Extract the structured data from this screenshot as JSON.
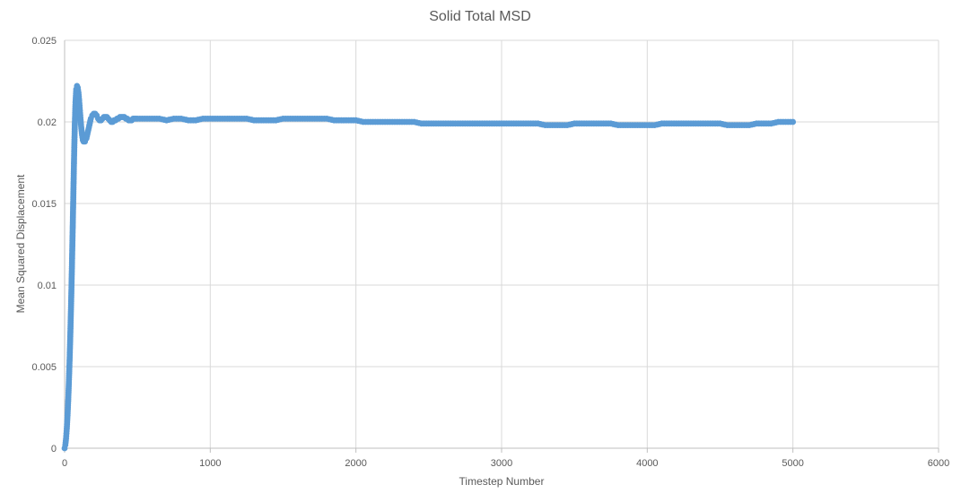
{
  "chart_data": {
    "type": "scatter",
    "title": "Solid Total MSD",
    "xlabel": "Timestep Number",
    "ylabel": "Mean Squared Displacement",
    "xlim": [
      0,
      6000
    ],
    "ylim": [
      0,
      0.025
    ],
    "xticks": [
      0,
      1000,
      2000,
      3000,
      4000,
      5000,
      6000
    ],
    "yticks": [
      0,
      0.005,
      0.01,
      0.015,
      0.02,
      0.025
    ],
    "xtick_labels": [
      "0",
      "1000",
      "2000",
      "3000",
      "4000",
      "5000",
      "6000"
    ],
    "ytick_labels": [
      "0",
      "0.005",
      "0.01",
      "0.015",
      "0.02",
      "0.025"
    ],
    "grid": true,
    "legend": "none",
    "marker_color": "#5b9bd5",
    "series": [
      {
        "name": "Solid Total MSD",
        "points": [
          [
            0,
            0
          ],
          [
            5,
            0.0002
          ],
          [
            10,
            0.0006
          ],
          [
            15,
            0.0012
          ],
          [
            20,
            0.002
          ],
          [
            25,
            0.003
          ],
          [
            30,
            0.0042
          ],
          [
            35,
            0.0056
          ],
          [
            40,
            0.0072
          ],
          [
            45,
            0.009
          ],
          [
            50,
            0.011
          ],
          [
            55,
            0.0132
          ],
          [
            60,
            0.0155
          ],
          [
            65,
            0.0178
          ],
          [
            70,
            0.0198
          ],
          [
            75,
            0.0212
          ],
          [
            80,
            0.022
          ],
          [
            85,
            0.0222
          ],
          [
            90,
            0.0221
          ],
          [
            95,
            0.0218
          ],
          [
            100,
            0.0213
          ],
          [
            105,
            0.0207
          ],
          [
            110,
            0.0201
          ],
          [
            115,
            0.0196
          ],
          [
            120,
            0.0192
          ],
          [
            125,
            0.0189
          ],
          [
            130,
            0.0188
          ],
          [
            140,
            0.0188
          ],
          [
            150,
            0.019
          ],
          [
            160,
            0.0194
          ],
          [
            170,
            0.0198
          ],
          [
            180,
            0.0202
          ],
          [
            190,
            0.0204
          ],
          [
            200,
            0.0205
          ],
          [
            210,
            0.0205
          ],
          [
            220,
            0.0204
          ],
          [
            230,
            0.0202
          ],
          [
            240,
            0.0201
          ],
          [
            250,
            0.0201
          ],
          [
            260,
            0.0202
          ],
          [
            270,
            0.0203
          ],
          [
            280,
            0.0203
          ],
          [
            290,
            0.0203
          ],
          [
            300,
            0.0202
          ],
          [
            310,
            0.0201
          ],
          [
            320,
            0.02
          ],
          [
            330,
            0.02
          ],
          [
            340,
            0.0201
          ],
          [
            350,
            0.0201
          ],
          [
            360,
            0.0202
          ],
          [
            370,
            0.0202
          ],
          [
            380,
            0.0203
          ],
          [
            390,
            0.0203
          ],
          [
            400,
            0.0203
          ],
          [
            410,
            0.0203
          ],
          [
            420,
            0.0202
          ],
          [
            430,
            0.0202
          ],
          [
            440,
            0.0201
          ],
          [
            450,
            0.0201
          ],
          [
            460,
            0.0201
          ],
          [
            470,
            0.0202
          ],
          [
            480,
            0.0202
          ],
          [
            490,
            0.0202
          ],
          [
            500,
            0.0202
          ],
          [
            550,
            0.0202
          ],
          [
            600,
            0.0202
          ],
          [
            650,
            0.0202
          ],
          [
            700,
            0.0201
          ],
          [
            750,
            0.0202
          ],
          [
            800,
            0.0202
          ],
          [
            850,
            0.0201
          ],
          [
            900,
            0.0201
          ],
          [
            950,
            0.0202
          ],
          [
            1000,
            0.0202
          ],
          [
            1050,
            0.0202
          ],
          [
            1100,
            0.0202
          ],
          [
            1150,
            0.0202
          ],
          [
            1200,
            0.0202
          ],
          [
            1250,
            0.0202
          ],
          [
            1300,
            0.0201
          ],
          [
            1350,
            0.0201
          ],
          [
            1400,
            0.0201
          ],
          [
            1450,
            0.0201
          ],
          [
            1500,
            0.0202
          ],
          [
            1550,
            0.0202
          ],
          [
            1600,
            0.0202
          ],
          [
            1650,
            0.0202
          ],
          [
            1700,
            0.0202
          ],
          [
            1750,
            0.0202
          ],
          [
            1800,
            0.0202
          ],
          [
            1850,
            0.0201
          ],
          [
            1900,
            0.0201
          ],
          [
            1950,
            0.0201
          ],
          [
            2000,
            0.0201
          ],
          [
            2050,
            0.02
          ],
          [
            2100,
            0.02
          ],
          [
            2150,
            0.02
          ],
          [
            2200,
            0.02
          ],
          [
            2250,
            0.02
          ],
          [
            2300,
            0.02
          ],
          [
            2350,
            0.02
          ],
          [
            2400,
            0.02
          ],
          [
            2450,
            0.0199
          ],
          [
            2500,
            0.0199
          ],
          [
            2550,
            0.0199
          ],
          [
            2600,
            0.0199
          ],
          [
            2650,
            0.0199
          ],
          [
            2700,
            0.0199
          ],
          [
            2750,
            0.0199
          ],
          [
            2800,
            0.0199
          ],
          [
            2850,
            0.0199
          ],
          [
            2900,
            0.0199
          ],
          [
            2950,
            0.0199
          ],
          [
            3000,
            0.0199
          ],
          [
            3050,
            0.0199
          ],
          [
            3100,
            0.0199
          ],
          [
            3150,
            0.0199
          ],
          [
            3200,
            0.0199
          ],
          [
            3250,
            0.0199
          ],
          [
            3300,
            0.0198
          ],
          [
            3350,
            0.0198
          ],
          [
            3400,
            0.0198
          ],
          [
            3450,
            0.0198
          ],
          [
            3500,
            0.0199
          ],
          [
            3550,
            0.0199
          ],
          [
            3600,
            0.0199
          ],
          [
            3650,
            0.0199
          ],
          [
            3700,
            0.0199
          ],
          [
            3750,
            0.0199
          ],
          [
            3800,
            0.0198
          ],
          [
            3850,
            0.0198
          ],
          [
            3900,
            0.0198
          ],
          [
            3950,
            0.0198
          ],
          [
            4000,
            0.0198
          ],
          [
            4050,
            0.0198
          ],
          [
            4100,
            0.0199
          ],
          [
            4150,
            0.0199
          ],
          [
            4200,
            0.0199
          ],
          [
            4250,
            0.0199
          ],
          [
            4300,
            0.0199
          ],
          [
            4350,
            0.0199
          ],
          [
            4400,
            0.0199
          ],
          [
            4450,
            0.0199
          ],
          [
            4500,
            0.0199
          ],
          [
            4550,
            0.0198
          ],
          [
            4600,
            0.0198
          ],
          [
            4650,
            0.0198
          ],
          [
            4700,
            0.0198
          ],
          [
            4750,
            0.0199
          ],
          [
            4800,
            0.0199
          ],
          [
            4850,
            0.0199
          ],
          [
            4900,
            0.02
          ],
          [
            4950,
            0.02
          ],
          [
            5000,
            0.02
          ]
        ]
      }
    ]
  }
}
